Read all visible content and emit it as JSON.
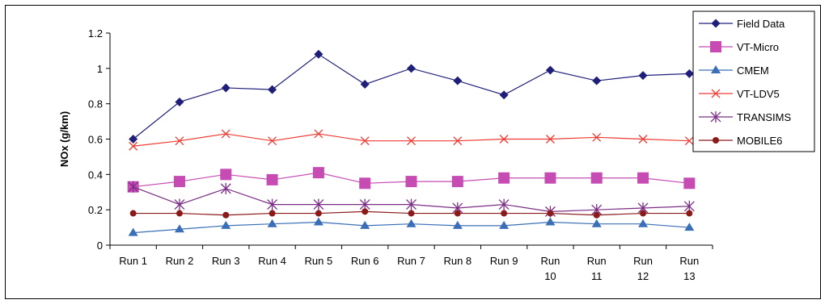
{
  "chart_data": {
    "type": "line",
    "ylabel": "NOx (g/km)",
    "xlabel": "",
    "title": "",
    "ylim": [
      0,
      1.2
    ],
    "yticks": [
      "0",
      "0.2",
      "0.4",
      "0.6",
      "0.8",
      "1",
      "1.2"
    ],
    "grid": false,
    "legend_position": "top-right",
    "categories": [
      [
        "Run 1"
      ],
      [
        "Run 2"
      ],
      [
        "Run 3"
      ],
      [
        "Run 4"
      ],
      [
        "Run 5"
      ],
      [
        "Run 6"
      ],
      [
        "Run 7"
      ],
      [
        "Run 8"
      ],
      [
        "Run 9"
      ],
      [
        "Run",
        "10"
      ],
      [
        "Run",
        "11"
      ],
      [
        "Run",
        "12"
      ],
      [
        "Run",
        "13"
      ]
    ],
    "series": [
      {
        "name": "Field Data",
        "color": "#1f1f7a",
        "marker": "diamond",
        "values": [
          0.6,
          0.81,
          0.89,
          0.88,
          1.08,
          0.91,
          1.0,
          0.93,
          0.85,
          0.99,
          0.93,
          0.96,
          0.97
        ]
      },
      {
        "name": "VT-Micro",
        "color": "#c64cb4",
        "marker": "square",
        "values": [
          0.33,
          0.36,
          0.4,
          0.37,
          0.41,
          0.35,
          0.36,
          0.36,
          0.38,
          0.38,
          0.38,
          0.38,
          0.35
        ]
      },
      {
        "name": "CMEM",
        "color": "#3a6fb7",
        "marker": "triangle",
        "values": [
          0.07,
          0.09,
          0.11,
          0.12,
          0.13,
          0.11,
          0.12,
          0.11,
          0.11,
          0.13,
          0.12,
          0.12,
          0.1
        ]
      },
      {
        "name": "VT-LDV5",
        "color": "#ee3b33",
        "marker": "x",
        "values": [
          0.56,
          0.59,
          0.63,
          0.59,
          0.63,
          0.59,
          0.59,
          0.59,
          0.6,
          0.6,
          0.61,
          0.6,
          0.59
        ]
      },
      {
        "name": "TRANSIMS",
        "color": "#7b2d86",
        "marker": "star",
        "values": [
          0.33,
          0.23,
          0.32,
          0.23,
          0.23,
          0.23,
          0.23,
          0.21,
          0.23,
          0.19,
          0.2,
          0.21,
          0.22
        ]
      },
      {
        "name": "MOBILE6",
        "color": "#8b1a1a",
        "marker": "circle",
        "values": [
          0.18,
          0.18,
          0.17,
          0.18,
          0.18,
          0.19,
          0.18,
          0.18,
          0.18,
          0.18,
          0.17,
          0.18,
          0.18
        ]
      }
    ]
  }
}
